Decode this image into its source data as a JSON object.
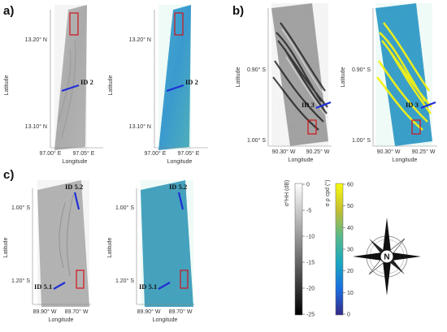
{
  "panels": {
    "a": {
      "label": "a)",
      "ylabel": "Latitude",
      "xlabel": "Longitude",
      "yticks": [
        "13.20° N",
        "13.10° N"
      ],
      "xticks": [
        "97.00° E",
        "97.05° E"
      ],
      "id_label": "ID 2"
    },
    "b": {
      "label": "b)",
      "ylabel": "Latitude",
      "xlabel": "Longitude",
      "yticks": [
        "0.90° S",
        "1.00° S"
      ],
      "xticks": [
        "90.30° W",
        "90.25° W"
      ],
      "id_label": "ID 3"
    },
    "c": {
      "label": "c)",
      "ylabel": "Latitude",
      "xlabel": "Longitude",
      "yticks": [
        "1.00° S",
        "1.20° S"
      ],
      "xticks": [
        "89.90° W",
        "89.70° W"
      ],
      "id_label_top": "ID 5.2",
      "id_label_bottom": "ID 5.1"
    }
  },
  "colorbars": {
    "gray": {
      "title": "σ⁰HH (dB)",
      "ticks": [
        "0",
        "-5",
        "-10",
        "-15",
        "-20",
        "-25"
      ],
      "colors": {
        "top": "#ffffff",
        "bottom": "#000000"
      }
    },
    "parula": {
      "title": "σ ρ cpd (°)",
      "ticks": [
        "60",
        "50",
        "40",
        "30",
        "20",
        "10",
        "0"
      ],
      "colors": {
        "top": "#f9fb0e",
        "mid": "#21a6a5",
        "bottom": "#352a87"
      }
    }
  },
  "compass": {
    "north_label": "N"
  },
  "colors": {
    "annotation_line": "#1f2fd6",
    "roi_box": "#d0141b"
  }
}
